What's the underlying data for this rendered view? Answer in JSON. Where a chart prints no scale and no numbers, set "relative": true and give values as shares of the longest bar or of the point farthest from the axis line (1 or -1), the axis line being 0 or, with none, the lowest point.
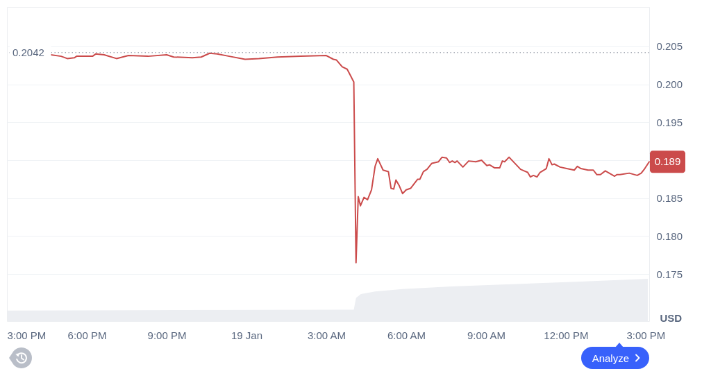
{
  "chart_data": [
    {
      "type": "line",
      "color": "#cb4b4b",
      "x": [
        "--01-18T16:39",
        "--01-18T17:02",
        "--01-18T17:16",
        "--01-18T17:32",
        "--01-18T17:37",
        "--01-18T18:13",
        "--01-18T18:20",
        "--01-18T18:39",
        "--01-18T19:07",
        "--01-18T19:34",
        "--01-18T20:18",
        "--01-18T21:00",
        "--01-18T21:16",
        "--01-18T21:58",
        "--01-18T22:18",
        "--01-18T22:37",
        "--01-18T22:54",
        "--01-18T23:21",
        "--01-18T23:57",
        "--01-19T00:28",
        "--01-19T01:10",
        "--01-19T02:02",
        "--01-19T03:00",
        "--01-19T03:16",
        "--01-19T03:23",
        "--01-19T03:36",
        "--01-19T03:47",
        "--01-19T03:55",
        "--01-19T04:02",
        "--01-19T04:07",
        "--01-19T04:12",
        "--01-19T04:17",
        "--01-19T04:25",
        "--01-19T04:33",
        "--01-19T04:42",
        "--01-19T04:50",
        "--01-19T04:56",
        "--01-19T05:08",
        "--01-19T05:20",
        "--01-19T05:26",
        "--01-19T05:32",
        "--01-19T05:37",
        "--01-19T05:44",
        "--01-19T05:52",
        "--01-19T06:00",
        "--01-19T06:10",
        "--01-19T06:26",
        "--01-19T06:31",
        "--01-19T06:39",
        "--01-19T06:47",
        "--01-19T06:58",
        "--01-19T07:13",
        "--01-19T07:21",
        "--01-19T07:31",
        "--01-19T07:38",
        "--01-19T07:44",
        "--01-19T07:50",
        "--01-19T07:55",
        "--01-19T08:08",
        "--01-19T08:21",
        "--01-19T08:37",
        "--01-19T08:50",
        "--01-19T09:02",
        "--01-19T09:08",
        "--01-19T09:19",
        "--01-19T09:31",
        "--01-19T09:37",
        "--01-19T09:42",
        "--01-19T09:52",
        "--01-19T10:05",
        "--01-19T10:18",
        "--01-19T10:26",
        "--01-19T10:34",
        "--01-19T10:40",
        "--01-19T10:47",
        "--01-19T10:55",
        "--01-19T11:02",
        "--01-19T11:16",
        "--01-19T11:22",
        "--01-19T11:29",
        "--01-19T11:34",
        "--01-19T11:47",
        "--01-19T12:02",
        "--01-19T12:19",
        "--01-19T12:26",
        "--01-19T12:34",
        "--01-19T12:50",
        "--01-19T13:02",
        "--01-19T13:10",
        "--01-19T13:18",
        "--01-19T13:29",
        "--01-19T13:50",
        "--01-19T13:55",
        "--01-19T14:02",
        "--01-19T14:23",
        "--01-19T14:41",
        "--01-19T14:50",
        "--01-19T14:58",
        "--01-19T15:08"
      ],
      "values": [
        0.2039,
        0.2037,
        0.2034,
        0.2035,
        0.2037,
        0.2037,
        0.204,
        0.2039,
        0.2034,
        0.2038,
        0.2037,
        0.2039,
        0.2036,
        0.2035,
        0.2036,
        0.2041,
        0.204,
        0.2037,
        0.2033,
        0.2034,
        0.2036,
        0.2037,
        0.2038,
        0.2033,
        0.2032,
        0.2023,
        0.202,
        0.2011,
        0.2003,
        0.1765,
        0.1852,
        0.184,
        0.1851,
        0.1848,
        0.1861,
        0.1892,
        0.1902,
        0.1887,
        0.1885,
        0.1863,
        0.1862,
        0.1874,
        0.1867,
        0.1856,
        0.1861,
        0.1863,
        0.1875,
        0.1875,
        0.1885,
        0.1888,
        0.1896,
        0.1898,
        0.1904,
        0.1903,
        0.1897,
        0.1899,
        0.1897,
        0.1899,
        0.1891,
        0.1899,
        0.1898,
        0.19,
        0.1893,
        0.1894,
        0.189,
        0.189,
        0.1899,
        0.1898,
        0.1904,
        0.1896,
        0.1888,
        0.1886,
        0.1884,
        0.1878,
        0.188,
        0.1878,
        0.1884,
        0.1889,
        0.1902,
        0.1894,
        0.1895,
        0.1891,
        0.1889,
        0.1887,
        0.1892,
        0.1889,
        0.1887,
        0.1887,
        0.1881,
        0.1881,
        0.1886,
        0.1879,
        0.1881,
        0.1881,
        0.1883,
        0.188,
        0.1883,
        0.1889,
        0.1898
      ],
      "xlim": [
        "--01-18T15:00",
        "--01-19T15:08"
      ],
      "xticks": [
        {
          "value": "--01-18T15:00",
          "label": "3:00 PM"
        },
        {
          "value": "--01-18T18:00",
          "label": "6:00 PM"
        },
        {
          "value": "--01-18T21:00",
          "label": "9:00 PM"
        },
        {
          "value": "--01-19T00:00",
          "label": "19 Jan"
        },
        {
          "value": "--01-19T03:00",
          "label": "3:00 AM"
        },
        {
          "value": "--01-19T06:00",
          "label": "6:00 AM"
        },
        {
          "value": "--01-19T09:00",
          "label": "9:00 AM"
        },
        {
          "value": "--01-19T12:00",
          "label": "12:00 PM"
        },
        {
          "value": "--01-19T15:00",
          "label": "3:00 PM"
        }
      ],
      "ylim": [
        0.1688,
        0.2102
      ],
      "yticks": [
        0.175,
        {
          "value": 0.18,
          "label": "0.180"
        },
        0.185,
        {
          "value": 0.19,
          "label": null
        },
        0.195,
        {
          "value": 0.2,
          "label": "0.200"
        },
        0.205
      ],
      "ylabel": "USD",
      "grid": "y",
      "ref_lines": [
        {
          "axis": "y",
          "value": 0.2042,
          "label": "0.2042",
          "color": "#a4a9b3",
          "line_style": "dotted"
        }
      ],
      "annotations": [
        {
          "text": "0.189",
          "x": "--01-19T15:08",
          "y": 0.1898
        },
        "Analyze"
      ]
    },
    {
      "type": "area",
      "relative": true,
      "color": "#eceef2",
      "x": [
        "--01-18T15:00",
        "--01-18T19:58",
        "--01-19T04:02",
        "--01-19T04:07",
        "--01-19T04:18",
        "--01-19T04:50",
        "--01-19T05:52",
        "--01-19T07:42",
        "--01-19T09:26",
        "--01-19T12:23",
        "--01-19T15:05"
      ],
      "values": [
        0.25,
        0.26,
        0.27,
        0.55,
        0.64,
        0.7,
        0.76,
        0.82,
        0.86,
        0.93,
        1
      ],
      "xlim": [
        "--01-18T15:00",
        "--01-19T15:08"
      ],
      "tick_labels": false
    }
  ]
}
